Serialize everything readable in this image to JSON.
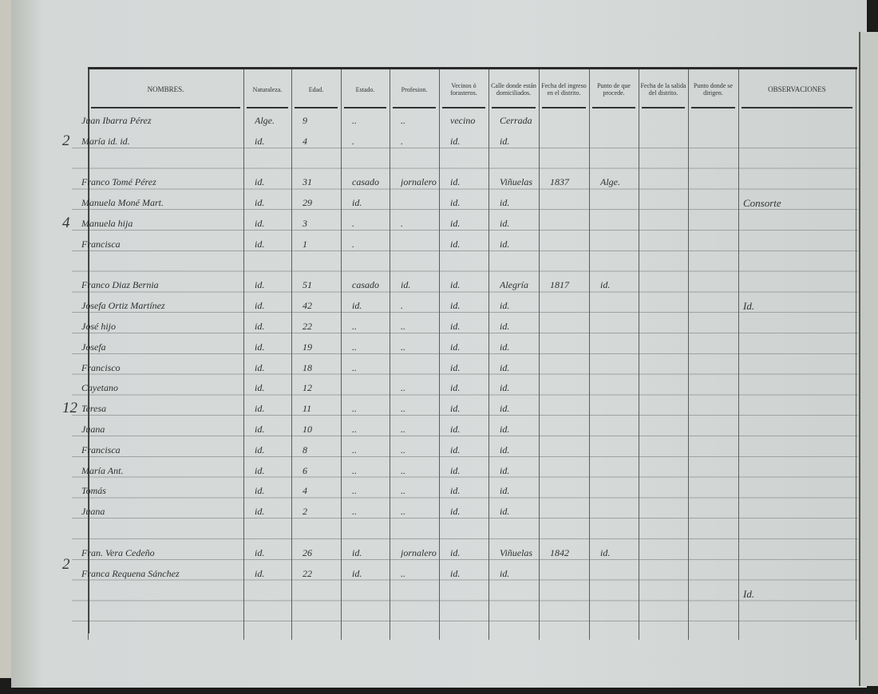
{
  "headers": [
    {
      "key": "nombres",
      "label": "NOMBRES."
    },
    {
      "key": "naturaleza",
      "label": "Naturaleza."
    },
    {
      "key": "edad",
      "label": "Edad."
    },
    {
      "key": "estado",
      "label": "Estado."
    },
    {
      "key": "profesion",
      "label": "Profesion."
    },
    {
      "key": "vecinos",
      "label": "Vecinos ó forasteros."
    },
    {
      "key": "calle",
      "label": "Calle donde están domiciliados."
    },
    {
      "key": "fecha_ingreso",
      "label": "Fecha del ingreso en el distrito."
    },
    {
      "key": "punto_procede",
      "label": "Punto de que procede."
    },
    {
      "key": "fecha_salida",
      "label": "Fecha de la salida del distrito."
    },
    {
      "key": "punto_dirigen",
      "label": "Punto donde se dirigen."
    },
    {
      "key": "observaciones",
      "label": "OBSERVACIONES"
    }
  ],
  "rows": [
    {
      "row": 0,
      "cells": [
        "Juan Ibarra Pérez",
        "Alge.",
        "9",
        "..",
        "..",
        "vecino",
        "Cerrada",
        "",
        "",
        "",
        "",
        ""
      ]
    },
    {
      "row": 1,
      "cells": [
        "María id. id.",
        "id.",
        "4",
        ".",
        ".",
        "id.",
        "id.",
        "",
        "",
        "",
        "",
        ""
      ]
    },
    {
      "row": 3,
      "cells": [
        "Franco Tomé Pérez",
        "id.",
        "31",
        "casado",
        "jornalero",
        "id.",
        "Viñuelas",
        "1837",
        "Alge.",
        "",
        "",
        ""
      ]
    },
    {
      "row": 4,
      "cells": [
        "Manuela Moné Mart.",
        "id.",
        "29",
        "id.",
        "",
        "id.",
        "id.",
        "",
        "",
        "",
        "",
        "Consorte"
      ]
    },
    {
      "row": 5,
      "cells": [
        "Manuela hija",
        "id.",
        "3",
        ".",
        ".",
        "id.",
        "id.",
        "",
        "",
        "",
        "",
        ""
      ]
    },
    {
      "row": 6,
      "cells": [
        "Francisca",
        "id.",
        "1",
        ".",
        "",
        "id.",
        "id.",
        "",
        "",
        "",
        "",
        ""
      ]
    },
    {
      "row": 8,
      "cells": [
        "Franco Diaz Bernia",
        "id.",
        "51",
        "casado",
        "id.",
        "id.",
        "Alegría",
        "1817",
        "id.",
        "",
        "",
        ""
      ]
    },
    {
      "row": 9,
      "cells": [
        "Josefa Ortiz Martínez",
        "id.",
        "42",
        "id.",
        ".",
        "id.",
        "id.",
        "",
        "",
        "",
        "",
        "Id."
      ]
    },
    {
      "row": 10,
      "cells": [
        "José hijo",
        "id.",
        "22",
        "..",
        "..",
        "id.",
        "id.",
        "",
        "",
        "",
        "",
        ""
      ]
    },
    {
      "row": 11,
      "cells": [
        "Josefa",
        "id.",
        "19",
        "..",
        "..",
        "id.",
        "id.",
        "",
        "",
        "",
        "",
        ""
      ]
    },
    {
      "row": 12,
      "cells": [
        "Francisco",
        "id.",
        "18",
        "..",
        "",
        "id.",
        "id.",
        "",
        "",
        "",
        "",
        ""
      ]
    },
    {
      "row": 13,
      "cells": [
        "Cayetano",
        "id.",
        "12",
        "",
        "..",
        "id.",
        "id.",
        "",
        "",
        "",
        "",
        ""
      ]
    },
    {
      "row": 14,
      "cells": [
        "Teresa",
        "id.",
        "11",
        "..",
        "..",
        "id.",
        "id.",
        "",
        "",
        "",
        "",
        ""
      ]
    },
    {
      "row": 15,
      "cells": [
        "Juana",
        "id.",
        "10",
        "..",
        "..",
        "id.",
        "id.",
        "",
        "",
        "",
        "",
        ""
      ]
    },
    {
      "row": 16,
      "cells": [
        "Francisca",
        "id.",
        "8",
        "..",
        "..",
        "id.",
        "id.",
        "",
        "",
        "",
        "",
        ""
      ]
    },
    {
      "row": 17,
      "cells": [
        "María Ant.",
        "id.",
        "6",
        "..",
        "..",
        "id.",
        "id.",
        "",
        "",
        "",
        "",
        ""
      ]
    },
    {
      "row": 18,
      "cells": [
        "Tomás",
        "id.",
        "4",
        "..",
        "..",
        "id.",
        "id.",
        "",
        "",
        "",
        "",
        ""
      ]
    },
    {
      "row": 19,
      "cells": [
        "Juana",
        "id.",
        "2",
        "..",
        "..",
        "id.",
        "id.",
        "",
        "",
        "",
        "",
        ""
      ]
    },
    {
      "row": 21,
      "cells": [
        "Fran. Vera Cedeño",
        "id.",
        "26",
        "id.",
        "jornalero",
        "id.",
        "Viñuelas",
        "1842",
        "id.",
        "",
        "",
        ""
      ]
    },
    {
      "row": 22,
      "cells": [
        "Franca Requena Sánchez",
        "id.",
        "22",
        "id.",
        "..",
        "id.",
        "id.",
        "",
        "",
        "",
        "",
        ""
      ]
    },
    {
      "row": 23,
      "cells": [
        "",
        "",
        "",
        "",
        "",
        "",
        "",
        "",
        "",
        "",
        "",
        "Id."
      ]
    }
  ],
  "family_counts": [
    {
      "row": 1,
      "value": "2"
    },
    {
      "row": 5,
      "value": "4"
    },
    {
      "row": 14,
      "value": "12"
    },
    {
      "row": 21.6,
      "value": "2"
    }
  ],
  "colors": {
    "paper": "#d4d8d7",
    "ink": "#2e2e2e",
    "rule": "#9ea3a2"
  }
}
